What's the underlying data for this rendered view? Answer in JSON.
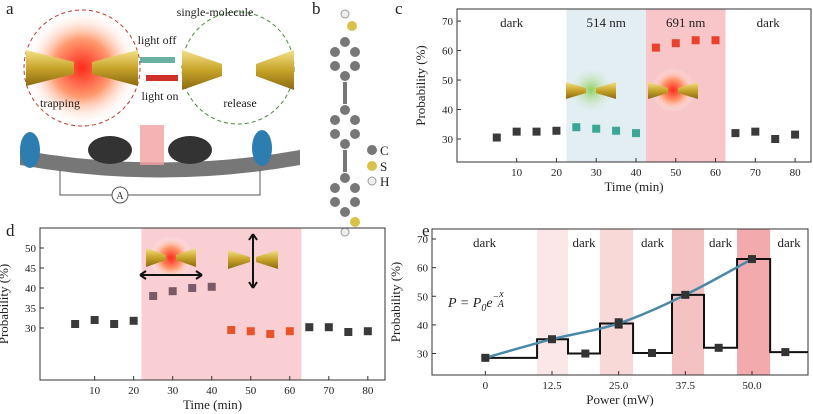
{
  "panels": {
    "a": {
      "letter": "a",
      "texts": [
        "single-molecule",
        "light off",
        "light on",
        "trapping",
        "release",
        "A"
      ]
    },
    "b": {
      "letter": "b",
      "atoms": [
        "C",
        "S",
        "H"
      ]
    }
  },
  "chart_data": [
    {
      "type": "scatter",
      "letter": "c",
      "xlabel": "Time (min)",
      "ylabel": "Probability (%)",
      "xlim": [
        -5,
        84
      ],
      "ylim": [
        22.2,
        74.1
      ],
      "xticks": [
        10,
        20,
        30,
        40,
        50,
        60,
        70,
        80
      ],
      "yticks": [
        30,
        40,
        50,
        60,
        70
      ],
      "regions": [
        {
          "label": "dark",
          "range": [
            -5,
            22.5
          ]
        },
        {
          "label": "514 nm",
          "range": [
            22.5,
            42.5
          ],
          "color": "#e3eef2"
        },
        {
          "label": "691 nm",
          "range": [
            42.5,
            62.5
          ],
          "color": "#f8c6c8"
        },
        {
          "label": "dark",
          "range": [
            62.5,
            84
          ]
        }
      ],
      "series": [
        {
          "color": "#3a3a3a",
          "x": [
            5,
            10,
            15,
            20
          ],
          "values": [
            30.5,
            32.5,
            32.5,
            32.8
          ]
        },
        {
          "color": "#3aa796",
          "x": [
            25,
            30,
            35,
            40
          ],
          "values": [
            34,
            33.5,
            32.8,
            32
          ]
        },
        {
          "color": "#e8412c",
          "x": [
            45,
            50,
            55,
            60
          ],
          "values": [
            61,
            62.5,
            63.5,
            63.5
          ]
        },
        {
          "color": "#3a3a3a",
          "x": [
            65,
            70,
            75,
            80
          ],
          "values": [
            32,
            32.5,
            30,
            31.5
          ]
        }
      ]
    },
    {
      "type": "scatter",
      "letter": "d",
      "xlabel": "Time (min)",
      "ylabel": "Probability (%)",
      "xlim": [
        -4,
        84.4
      ],
      "ylim": [
        17,
        55
      ],
      "xticks": [
        10,
        20,
        30,
        40,
        50,
        60,
        70,
        80
      ],
      "yticks": [
        30,
        35,
        40,
        45,
        50
      ],
      "regions": [
        {
          "range": [
            22,
            42
          ],
          "color": "#f9cfd3"
        },
        {
          "range": [
            42,
            63
          ],
          "color": "#f9cfd3"
        }
      ],
      "series": [
        {
          "color": "#3a3a3a",
          "x": [
            5,
            10,
            15,
            20
          ],
          "values": [
            31,
            32,
            31,
            31.8
          ]
        },
        {
          "color": "#7a5a66",
          "x": [
            25,
            30,
            35,
            40
          ],
          "values": [
            38,
            39.2,
            40,
            40.3
          ]
        },
        {
          "color": "#e8532a",
          "x": [
            45,
            50,
            55,
            60
          ],
          "values": [
            29.5,
            29.2,
            28.5,
            29.2
          ]
        },
        {
          "color": "#3a3a3a",
          "x": [
            65,
            70,
            75,
            80
          ],
          "values": [
            30.2,
            30.2,
            29,
            29.2
          ]
        }
      ]
    },
    {
      "type": "step",
      "letter": "e",
      "xlabel": "Power (mW)",
      "ylabel": "Probability (%)",
      "xlim": [
        -10,
        60.5
      ],
      "ylim": [
        22.5,
        73.5
      ],
      "xticks": [
        0,
        12.5,
        {
          "value": 25,
          "label": "25.0"
        },
        37.5,
        {
          "value": 50,
          "label": "50.0"
        }
      ],
      "yticks": [
        30,
        40,
        50,
        60,
        70
      ],
      "formula": {
        "lhs": "P = P",
        "sub": "0",
        "base": "e",
        "sign": "−",
        "num": "x",
        "den": "A"
      },
      "regions": [
        {
          "label": "dark",
          "range": [
            -10,
            9.7
          ]
        },
        {
          "range": [
            9.7,
            15.5
          ],
          "color": "#fbe7e7"
        },
        {
          "label": "dark",
          "range": [
            15.5,
            21.5
          ]
        },
        {
          "range": [
            21.5,
            27.7
          ],
          "color": "#f9d8d8"
        },
        {
          "label": "dark",
          "range": [
            27.7,
            35
          ]
        },
        {
          "range": [
            35,
            41
          ],
          "color": "#f5c2c3"
        },
        {
          "label": "dark",
          "range": [
            41,
            47.2
          ]
        },
        {
          "range": [
            47.2,
            53.4
          ],
          "color": "#f2aaad"
        },
        {
          "label": "dark",
          "range": [
            53.4,
            60.5
          ]
        }
      ],
      "series": [
        {
          "color": "#333333",
          "x": [
            0,
            12.5,
            25,
            37.5,
            50
          ],
          "values": [
            28.5,
            35,
            40.5,
            50.5,
            63
          ],
          "errors": [
            0.6,
            1,
            1.6,
            0.8,
            0.8
          ]
        },
        {
          "color": "#333333",
          "x": [
            18.75,
            31.25,
            43.75,
            56.25
          ],
          "values": [
            30,
            30.2,
            32,
            30.5
          ]
        }
      ],
      "curve_color": "#4a8aa8"
    }
  ]
}
